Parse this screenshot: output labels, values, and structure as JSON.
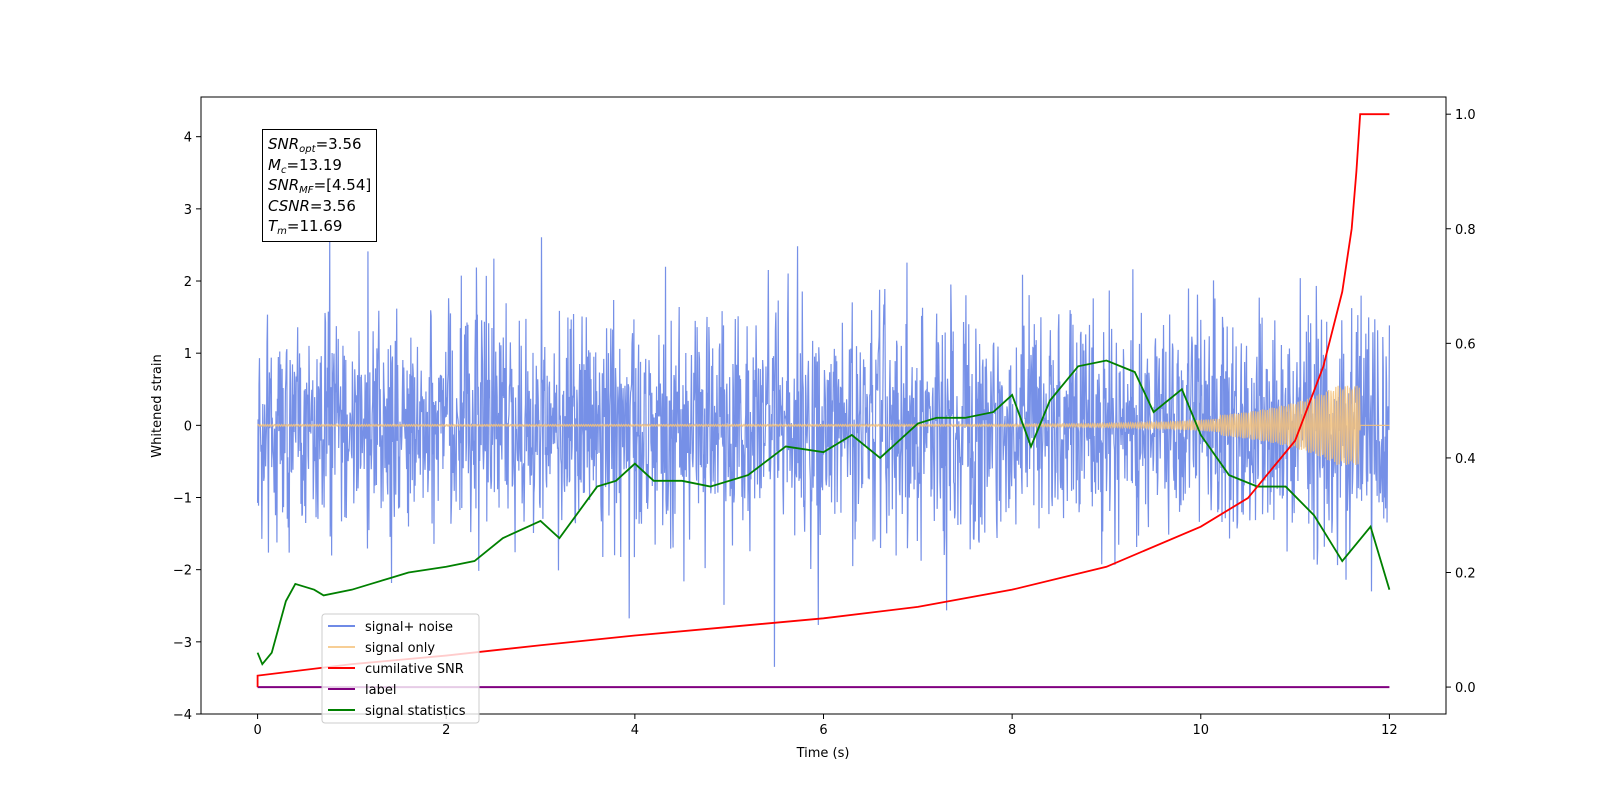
{
  "chart_data": {
    "type": "line",
    "xlabel": "Time (s)",
    "ylabel": "Whitened strain",
    "xlim": [
      -0.6,
      12.6
    ],
    "ylim": [
      -4.0,
      4.55
    ],
    "y2lim": [
      -0.047,
      1.03
    ],
    "x_ticks": [
      "0",
      "2",
      "4",
      "6",
      "8",
      "10",
      "12"
    ],
    "y_ticks": [
      "4",
      "3",
      "2",
      "1",
      "0",
      "−1",
      "−2",
      "−3",
      "−4"
    ],
    "y2_ticks": [
      "1.0",
      "0.8",
      "0.6",
      "0.4",
      "0.2",
      "0.0"
    ],
    "info": {
      "snr_opt": {
        "base": "SNR",
        "sub": "opt",
        "value": "=3.56"
      },
      "mc": {
        "base": "M",
        "sub": "c",
        "value": "=13.19"
      },
      "snr_mf": {
        "base": "SNR",
        "sub": "MF",
        "value": "=[4.54]"
      },
      "csnr": {
        "base": "CSNR",
        "value": "=3.56"
      },
      "tm": {
        "base": "T",
        "sub": "m",
        "value": "=11.69"
      }
    },
    "series": [
      {
        "name": "signal+ noise",
        "color": "#6f8ae6",
        "axis": "left",
        "description": "whitened strain noise, approx. uniform band -2.5..2.5 with spikes to +4.2 / -3.6",
        "x_range": [
          0,
          12
        ]
      },
      {
        "name": "signal only",
        "color": "#f5c27a",
        "axis": "left",
        "description": "chirp, amplitude grows to ~0.55 near t=11.69, zero afterwards",
        "x_range": [
          0,
          12
        ]
      },
      {
        "name": "cumilative SNR",
        "color": "#ff0000",
        "axis": "right",
        "points": [
          [
            0,
            0.0
          ],
          [
            0,
            0.02
          ],
          [
            1,
            0.04
          ],
          [
            2,
            0.055
          ],
          [
            3,
            0.073
          ],
          [
            4,
            0.09
          ],
          [
            5,
            0.105
          ],
          [
            6,
            0.12
          ],
          [
            7,
            0.14
          ],
          [
            8,
            0.17
          ],
          [
            9,
            0.21
          ],
          [
            10,
            0.28
          ],
          [
            10.5,
            0.33
          ],
          [
            11,
            0.43
          ],
          [
            11.3,
            0.56
          ],
          [
            11.5,
            0.69
          ],
          [
            11.6,
            0.8
          ],
          [
            11.65,
            0.9
          ],
          [
            11.69,
            1.0
          ],
          [
            12,
            1.0
          ]
        ]
      },
      {
        "name": "label",
        "color": "#800080",
        "axis": "right",
        "points": [
          [
            0,
            0.0
          ],
          [
            12,
            0.0
          ]
        ]
      },
      {
        "name": "signal statistics",
        "color": "#008000",
        "axis": "right",
        "points": [
          [
            0,
            0.06
          ],
          [
            0.05,
            0.04
          ],
          [
            0.15,
            0.06
          ],
          [
            0.3,
            0.15
          ],
          [
            0.4,
            0.18
          ],
          [
            0.6,
            0.17
          ],
          [
            0.7,
            0.16
          ],
          [
            1.0,
            0.17
          ],
          [
            1.2,
            0.18
          ],
          [
            1.4,
            0.19
          ],
          [
            1.6,
            0.2
          ],
          [
            2.0,
            0.21
          ],
          [
            2.3,
            0.22
          ],
          [
            2.6,
            0.26
          ],
          [
            3.0,
            0.29
          ],
          [
            3.2,
            0.26
          ],
          [
            3.6,
            0.35
          ],
          [
            3.8,
            0.36
          ],
          [
            4.0,
            0.39
          ],
          [
            4.2,
            0.36
          ],
          [
            4.5,
            0.36
          ],
          [
            4.8,
            0.35
          ],
          [
            5.2,
            0.37
          ],
          [
            5.6,
            0.42
          ],
          [
            6.0,
            0.41
          ],
          [
            6.3,
            0.44
          ],
          [
            6.6,
            0.4
          ],
          [
            7.0,
            0.46
          ],
          [
            7.2,
            0.47
          ],
          [
            7.5,
            0.47
          ],
          [
            7.8,
            0.48
          ],
          [
            8.0,
            0.51
          ],
          [
            8.2,
            0.42
          ],
          [
            8.4,
            0.5
          ],
          [
            8.7,
            0.56
          ],
          [
            9.0,
            0.57
          ],
          [
            9.3,
            0.55
          ],
          [
            9.5,
            0.48
          ],
          [
            9.8,
            0.52
          ],
          [
            10.0,
            0.44
          ],
          [
            10.3,
            0.37
          ],
          [
            10.6,
            0.35
          ],
          [
            10.9,
            0.35
          ],
          [
            11.2,
            0.3
          ],
          [
            11.5,
            0.22
          ],
          [
            11.8,
            0.28
          ],
          [
            12.0,
            0.17
          ]
        ]
      }
    ],
    "legend": {
      "placement": "lower-left",
      "entries": [
        "signal+ noise",
        "signal only",
        "cumilative SNR",
        "label",
        "signal statistics"
      ]
    }
  },
  "colors": {
    "noise": "#6f8ae6",
    "signal": "#f5c27a",
    "cumulative_snr": "#ff0000",
    "label": "#800080",
    "statistics": "#008000"
  }
}
